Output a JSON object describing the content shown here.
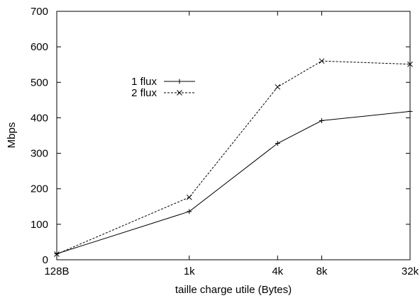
{
  "chart_data": {
    "type": "line",
    "xlabel": "taille charge utile (Bytes)",
    "ylabel": "Mbps",
    "x_scale": "log2",
    "categories": [
      "128B",
      "1k",
      "4k",
      "8k",
      "32k"
    ],
    "x": [
      128,
      1024,
      4096,
      8192,
      32768
    ],
    "ylim": [
      0,
      700
    ],
    "yticks": [
      0,
      100,
      200,
      300,
      400,
      500,
      600,
      700
    ],
    "grid": false,
    "legend_position": "upper-left inside plot",
    "series": [
      {
        "name": "1 flux",
        "values": [
          17,
          136,
          328,
          392,
          418
        ],
        "line_style": "solid",
        "marker": "+"
      },
      {
        "name": "2 flux",
        "values": [
          16,
          176,
          487,
          560,
          551
        ],
        "line_style": "dashed",
        "marker": "x"
      }
    ]
  }
}
